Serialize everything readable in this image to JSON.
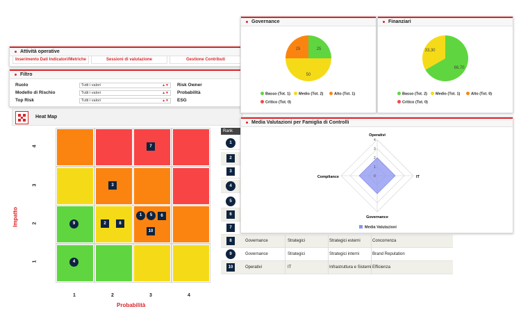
{
  "attivita": {
    "title": "Attività operative",
    "tabs": [
      "Inserimento Dati Indicatori/Metriche",
      "Sessioni di valutazione",
      "Gestione Contributi"
    ]
  },
  "filtro": {
    "title": "Filtro",
    "fields": [
      {
        "label": "Ruolo",
        "value": "Tutti i valori"
      },
      {
        "label": "Modello di Rischio",
        "value": "Tutti i valori"
      },
      {
        "label": "Top Risk",
        "value": "Tutti i valori"
      }
    ],
    "right_labels": [
      "Risk Owner",
      "Probabilità",
      "ESG"
    ]
  },
  "heatmap": {
    "title": "Heat Map",
    "y_axis_label": "Impatto",
    "x_axis_label": "Probabilità",
    "y_ticks": [
      "4",
      "3",
      "2",
      "1"
    ],
    "x_ticks": [
      "1",
      "2",
      "3",
      "4"
    ],
    "colors": {
      "green": "#5fd63f",
      "yellow": "#f5db17",
      "orange": "#fb8411",
      "red": "#f94445"
    },
    "grid": [
      [
        "orange",
        "red",
        "red",
        "red"
      ],
      [
        "yellow",
        "orange",
        "orange",
        "red"
      ],
      [
        "green",
        "yellow",
        "orange",
        "orange"
      ],
      [
        "green",
        "green",
        "yellow",
        "yellow"
      ]
    ],
    "markers": {
      "r7": "7",
      "r3": "3",
      "r9": "9",
      "r2": "2",
      "r8": "8",
      "r1": "1",
      "r5": "5",
      "r6": "6",
      "r10": "10",
      "r4": "4"
    }
  },
  "rank": {
    "header": "Rank",
    "items": [
      "1",
      "2",
      "3",
      "4",
      "5",
      "6",
      "7",
      "8",
      "9",
      "10"
    ]
  },
  "table_rows": [
    {
      "rank": "8",
      "famiglia": "Governance",
      "tipo": "Strategici",
      "sotto": "Strategici esterni",
      "rischio": "Concorrenza"
    },
    {
      "rank": "9",
      "famiglia": "Governance",
      "tipo": "Strategici",
      "sotto": "Strategici interni",
      "rischio": "Brand Reputation"
    },
    {
      "rank": "10",
      "famiglia": "Operativi",
      "tipo": "IT",
      "sotto": "Infrastruttura e Sistemi",
      "rischio": "Efficienza"
    }
  ],
  "governance": {
    "title": "Governance",
    "slices": [
      {
        "label": "Basso",
        "value": 25,
        "color": "#5fd63f"
      },
      {
        "label": "Medio",
        "value": 50,
        "color": "#f5db17"
      },
      {
        "label": "Alto",
        "value": 25,
        "color": "#fb8411"
      }
    ],
    "slice_labels": [
      "25",
      "50",
      "25"
    ],
    "legend": [
      "Basso (Tot. 1)",
      "Medio (Tot. 2)",
      "Alto (Tot. 1)",
      "Critico (Tot. 0)"
    ]
  },
  "finanziari": {
    "title": "Finanziari",
    "slices": [
      {
        "label": "Basso",
        "value": 66.7,
        "color": "#5fd63f"
      },
      {
        "label": "Medio",
        "value": 33.3,
        "color": "#f5db17"
      }
    ],
    "slice_labels": [
      "66,70",
      "33,30"
    ],
    "legend": [
      "Basso (Tot. 2)",
      "Medio (Tot. 1)",
      "Alto (Tot. 0)",
      "Critico (Tot. 0)"
    ]
  },
  "legend_colors": [
    "#5fd63f",
    "#f5db17",
    "#fb8411",
    "#f94445"
  ],
  "radar": {
    "title": "Media Valutazioni per Famiglia di Controlli",
    "axes": [
      "Operativi",
      "IT",
      "Governance",
      "Compliance"
    ],
    "ticks": [
      "0",
      "1",
      "2",
      "3",
      "4"
    ],
    "max": 4,
    "values": [
      2,
      2,
      2,
      2
    ],
    "legend": "Media Valutazioni",
    "color": "#8b93f0"
  },
  "chart_data": [
    {
      "type": "pie",
      "title": "Governance",
      "categories": [
        "Basso",
        "Medio",
        "Alto",
        "Critico"
      ],
      "values": [
        25,
        50,
        25,
        0
      ]
    },
    {
      "type": "pie",
      "title": "Finanziari",
      "categories": [
        "Basso",
        "Medio",
        "Alto",
        "Critico"
      ],
      "values": [
        66.7,
        33.3,
        0,
        0
      ]
    },
    {
      "type": "radar",
      "title": "Media Valutazioni per Famiglia di Controlli",
      "categories": [
        "Operativi",
        "IT",
        "Governance",
        "Compliance"
      ],
      "series": [
        {
          "name": "Media Valutazioni",
          "values": [
            2,
            2,
            2,
            2
          ]
        }
      ],
      "ylim": [
        0,
        4
      ]
    }
  ]
}
